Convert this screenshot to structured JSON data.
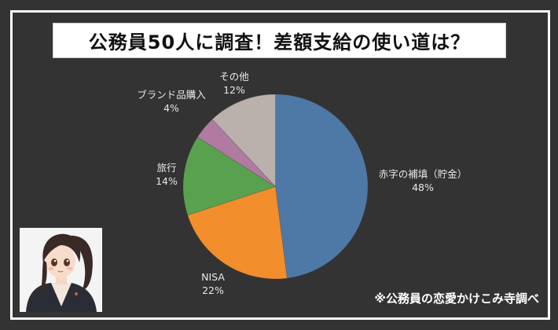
{
  "header": {
    "title": "公務員50人に調査！差額支給の使い道は？"
  },
  "footer": {
    "credit": "※公務員の恋愛かけこみ寺調べ"
  },
  "colors": {
    "background": "#333333",
    "frame": "#ffffff",
    "title_bg": "#ffffff",
    "title_text": "#111111"
  },
  "labels": [
    {
      "name": "赤字の補填（貯金）",
      "pct": "48%"
    },
    {
      "name": "NISA",
      "pct": "22%"
    },
    {
      "name": "旅行",
      "pct": "14%"
    },
    {
      "name": "ブランド品購入",
      "pct": "4%"
    },
    {
      "name": "その他",
      "pct": "12%"
    }
  ],
  "chart_data": {
    "type": "pie",
    "title": "公務員50人に調査！差額支給の使い道は？",
    "categories": [
      "赤字の補填（貯金）",
      "NISA",
      "旅行",
      "ブランド品購入",
      "その他"
    ],
    "values": [
      48,
      22,
      14,
      4,
      12
    ],
    "unit": "%",
    "colors": [
      "#4e79a7",
      "#f28e2b",
      "#59a14f",
      "#b07aa1",
      "#bab0ac"
    ],
    "start_angle": "12 o'clock",
    "direction": "clockwise",
    "legend": "none (labels outside slices)",
    "annotation": "※公務員の恋愛かけこみ寺調べ"
  }
}
